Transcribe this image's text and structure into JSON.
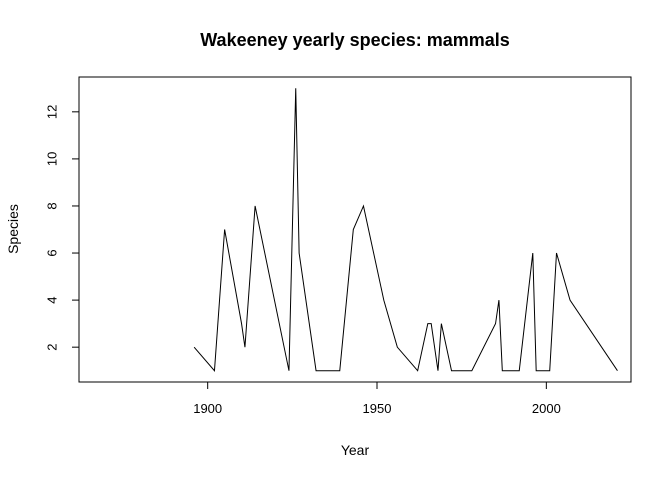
{
  "chart_data": {
    "type": "line",
    "title": "Wakeeney yearly species: mammals",
    "xlabel": "Year",
    "ylabel": "Species",
    "xlim": [
      1862,
      2025
    ],
    "ylim": [
      0.52,
      13.48
    ],
    "x_ticks": [
      1900,
      1950,
      2000
    ],
    "y_ticks": [
      2,
      4,
      6,
      8,
      10,
      12
    ],
    "grid": false,
    "legend": "none",
    "color": "#000000",
    "series": [
      {
        "x": [
          1896,
          1902,
          1905,
          1910,
          1911,
          1914,
          1924,
          1926,
          1927,
          1932,
          1935,
          1939,
          1943,
          1946,
          1952,
          1956,
          1962,
          1965,
          1966,
          1968,
          1969,
          1972,
          1978,
          1985,
          1986,
          1987,
          1988,
          1992,
          1996,
          1997,
          2001,
          2003,
          2007,
          2021
        ],
        "y": [
          2,
          1,
          7,
          3,
          2,
          8,
          1,
          13,
          6,
          1,
          1,
          1,
          7,
          8,
          4,
          2,
          1,
          3,
          3,
          1,
          3,
          1,
          1,
          3,
          4,
          1,
          1,
          1,
          6,
          1,
          1,
          6,
          4,
          1
        ]
      }
    ]
  }
}
